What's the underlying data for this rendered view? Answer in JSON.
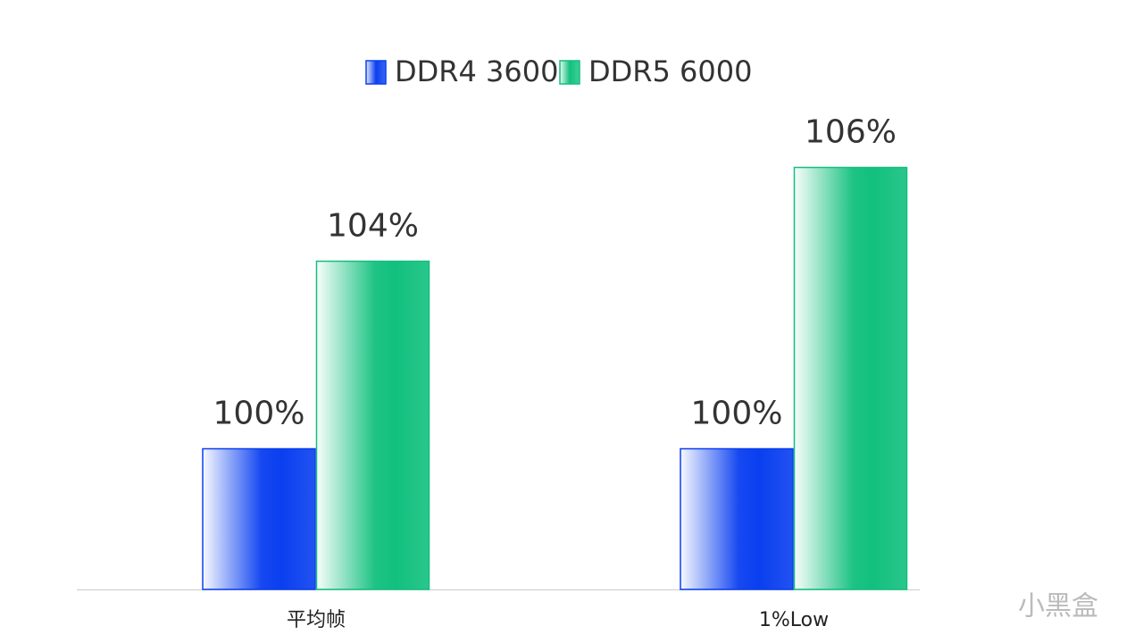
{
  "chart_data": {
    "type": "bar",
    "categories": [
      "平均帧",
      "1%Low"
    ],
    "series": [
      {
        "name": "DDR4 3600",
        "color": "#0a3ff0",
        "values": [
          100,
          100
        ],
        "value_labels": [
          "100%",
          "100%"
        ]
      },
      {
        "name": "DDR5 6000",
        "color": "#12c07e",
        "values": [
          104,
          106
        ],
        "value_labels": [
          "104%",
          "106%"
        ]
      }
    ],
    "ylim": [
      97,
      107
    ],
    "watermark": "小黑盒"
  }
}
